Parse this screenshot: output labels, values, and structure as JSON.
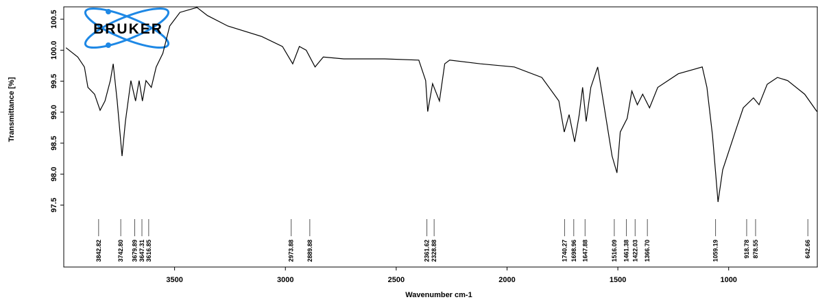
{
  "chart_data": {
    "type": "line",
    "logo": "BRUKER",
    "xlabel": "Wavenumber cm-1",
    "ylabel": "Transmittance [%]",
    "color": "#000000",
    "xlim": [
      4000,
      600
    ],
    "ylim": [
      96.5,
      100.7
    ],
    "xticks": [
      3500,
      3000,
      2500,
      2000,
      1500,
      1000
    ],
    "yticks": [
      97.5,
      {
        "value": 98,
        "label": "98.0"
      },
      98.5,
      {
        "value": 99,
        "label": "99.0"
      },
      99.5,
      {
        "value": 100,
        "label": "100.0"
      },
      100.5
    ],
    "grid": false,
    "x": [
      3990,
      3937,
      3907,
      3891,
      3861,
      3836,
      3814,
      3790,
      3777,
      3759,
      3737,
      3722,
      3697,
      3676,
      3660,
      3645,
      3629,
      3605,
      3583,
      3553,
      3522,
      3476,
      3399,
      3352,
      3260,
      3106,
      3013,
      2967,
      2937,
      2906,
      2866,
      2829,
      2737,
      2552,
      2398,
      2367,
      2358,
      2336,
      2305,
      2281,
      2259,
      2120,
      1967,
      1843,
      1766,
      1742,
      1720,
      1695,
      1674,
      1659,
      1643,
      1622,
      1591,
      1566,
      1526,
      1504,
      1489,
      1458,
      1437,
      1412,
      1388,
      1357,
      1320,
      1227,
      1119,
      1098,
      1073,
      1048,
      1027,
      965,
      934,
      888,
      863,
      826,
      780,
      734,
      657,
      602
    ],
    "values": [
      100.04,
      99.89,
      99.73,
      99.4,
      99.29,
      99.03,
      99.18,
      99.51,
      99.78,
      99.18,
      98.29,
      98.85,
      99.51,
      99.18,
      99.51,
      99.18,
      99.51,
      99.4,
      99.73,
      99.95,
      100.39,
      100.61,
      100.69,
      100.56,
      100.39,
      100.22,
      100.06,
      99.78,
      100.06,
      100.0,
      99.73,
      99.89,
      99.86,
      99.86,
      99.84,
      99.51,
      99.01,
      99.46,
      99.18,
      99.78,
      99.84,
      99.78,
      99.73,
      99.56,
      99.18,
      98.68,
      98.96,
      98.52,
      98.96,
      99.4,
      98.85,
      99.4,
      99.73,
      99.18,
      98.29,
      98.02,
      98.68,
      98.9,
      99.34,
      99.12,
      99.29,
      99.07,
      99.4,
      99.62,
      99.73,
      99.4,
      98.63,
      97.55,
      98.07,
      98.74,
      99.07,
      99.23,
      99.12,
      99.45,
      99.56,
      99.51,
      99.29,
      99.01
    ],
    "peaks": [
      {
        "value": 3842.82,
        "label": "3842.82"
      },
      {
        "value": 3742.8,
        "label": "3742.80"
      },
      {
        "value": 3679.89,
        "label": "3679.89"
      },
      {
        "value": 3647.31,
        "label": "3647.31"
      },
      {
        "value": 3616.85,
        "label": "3616.85"
      },
      {
        "value": 2973.88,
        "label": "2973.88"
      },
      {
        "value": 2889.88,
        "label": "2889.88"
      },
      {
        "value": 2361.62,
        "label": "2361.62"
      },
      {
        "value": 2328.88,
        "label": "2328.88"
      },
      {
        "value": 1740.27,
        "label": "1740.27"
      },
      {
        "value": 1698.96,
        "label": "1698.96"
      },
      {
        "value": 1647.88,
        "label": "1647.88"
      },
      {
        "value": 1516.09,
        "label": "1516.09"
      },
      {
        "value": 1461.38,
        "label": "1461.38"
      },
      {
        "value": 1422.03,
        "label": "1422.03"
      },
      {
        "value": 1366.7,
        "label": "1366.70"
      },
      {
        "value": 1059.19,
        "label": "1059.19"
      },
      {
        "value": 918.78,
        "label": "918.78"
      },
      {
        "value": 878.55,
        "label": "878.55"
      },
      {
        "value": 642.66,
        "label": "642.66"
      }
    ]
  }
}
